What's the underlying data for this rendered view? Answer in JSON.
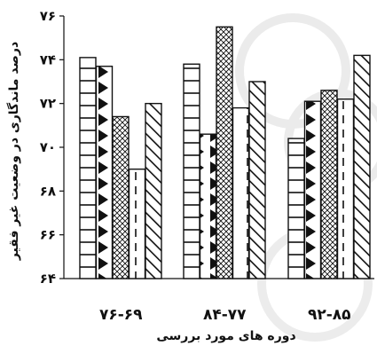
{
  "chart_data": {
    "type": "bar",
    "xlabel": "دوره های مورد بررسی",
    "ylabel": "درصد ماندگاری در وضعیت غیر فقیر",
    "ylim": [
      64,
      76
    ],
    "yticks": [
      64,
      66,
      68,
      70,
      72,
      74,
      76
    ],
    "ytick_labels": [
      "۶۴",
      "۶۶",
      "۶۸",
      "۷۰",
      "۷۲",
      "۷۴",
      "۷۶"
    ],
    "categories": [
      "۷۶-۶۹",
      "۸۴-۷۷",
      "۹۲-۸۵"
    ],
    "series": [
      {
        "pattern": "horizontal-lines",
        "values": [
          74.1,
          73.8,
          70.4
        ]
      },
      {
        "pattern": "triangles",
        "values": [
          73.7,
          70.6,
          72.1
        ]
      },
      {
        "pattern": "crosshatch",
        "values": [
          71.4,
          75.5,
          72.6
        ]
      },
      {
        "pattern": "dashed-vertical",
        "values": [
          69.0,
          71.8,
          72.2
        ]
      },
      {
        "pattern": "diagonal",
        "values": [
          72.0,
          73.0,
          74.2
        ]
      }
    ],
    "grid": false,
    "legend": "none"
  },
  "colors": {
    "bar_fill": "#ffffff",
    "bar_stroke": "#111111",
    "watermark": "#d9d9d9"
  }
}
